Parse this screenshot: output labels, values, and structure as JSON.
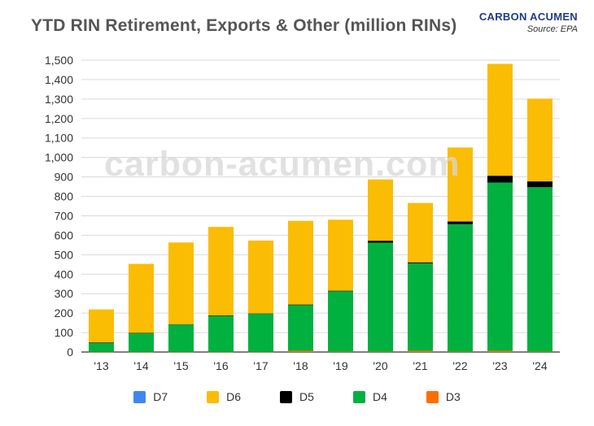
{
  "header": {
    "title": "YTD RIN Retirement, Exports & Other (million RINs)",
    "brand": "CARBON ACUMEN",
    "source": "Source: EPA",
    "watermark": "carbon-acumen.com"
  },
  "chart_data": {
    "type": "bar",
    "stacked": true,
    "categories": [
      "'13",
      "'14",
      "'15",
      "'16",
      "'17",
      "'18",
      "'19",
      "'20",
      "'21",
      "'22",
      "'23",
      "'24"
    ],
    "series": [
      {
        "name": "D7",
        "color": "#4285f4",
        "values": [
          0,
          0,
          0,
          0,
          0,
          0,
          0,
          0,
          0,
          0,
          0,
          0
        ]
      },
      {
        "name": "D6",
        "color": "#fbbc04",
        "values": [
          170,
          355,
          420,
          455,
          375,
          430,
          365,
          315,
          305,
          380,
          575,
          425
        ]
      },
      {
        "name": "D5",
        "color": "#000000",
        "values": [
          3,
          2,
          2,
          2,
          2,
          3,
          3,
          10,
          5,
          14,
          35,
          30
        ]
      },
      {
        "name": "D4",
        "color": "#00b140",
        "values": [
          45,
          95,
          140,
          185,
          195,
          235,
          310,
          560,
          450,
          655,
          865,
          845
        ]
      },
      {
        "name": "D3",
        "color": "#ff6d00",
        "values": [
          1,
          1,
          1,
          1,
          1,
          6,
          2,
          2,
          6,
          2,
          6,
          2
        ]
      }
    ],
    "stack_order": [
      "D3",
      "D4",
      "D5",
      "D6",
      "D7"
    ],
    "ylim": [
      0,
      1500
    ],
    "yticks": [
      "0",
      "100",
      "200",
      "300",
      "400",
      "500",
      "600",
      "700",
      "800",
      "900",
      "1,000",
      "1,100",
      "1,200",
      "1,300",
      "1,400",
      "1,500"
    ],
    "ytick_values": [
      0,
      100,
      200,
      300,
      400,
      500,
      600,
      700,
      800,
      900,
      1000,
      1100,
      1200,
      1300,
      1400,
      1500
    ],
    "grid": true,
    "legend_position": "bottom"
  }
}
